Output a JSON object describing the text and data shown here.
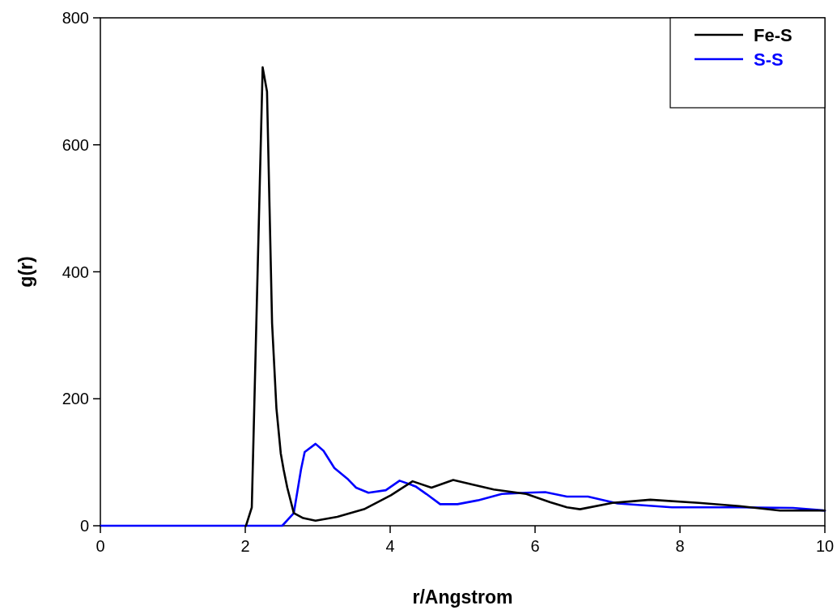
{
  "chart_data": {
    "type": "line",
    "xlabel": "r/Angstrom",
    "ylabel": "g(r)",
    "xlim": [
      0,
      10
    ],
    "ylim": [
      0,
      800
    ],
    "xticks": [
      0,
      2,
      4,
      6,
      8,
      10
    ],
    "yticks": [
      0,
      200,
      400,
      600,
      800
    ],
    "legend": "top right",
    "grid": false,
    "marker": "none",
    "line_style": "solid",
    "series": [
      {
        "name": "Fe-S",
        "color": "#000000",
        "x": [
          2.01,
          2.09,
          2.24,
          2.3,
          2.37,
          2.43,
          2.49,
          2.53,
          2.58,
          2.67,
          2.8,
          2.97,
          3.27,
          3.64,
          4.01,
          4.31,
          4.57,
          4.87,
          5.13,
          5.43,
          5.88,
          6.21,
          6.44,
          6.62,
          7.07,
          7.59,
          8.26,
          8.82,
          9.38,
          10
        ],
        "values": [
          0,
          29,
          722,
          684,
          319,
          185,
          114,
          88,
          60,
          20,
          12,
          8,
          14,
          26,
          48,
          70,
          60,
          72,
          65,
          57,
          50,
          37,
          29,
          26,
          36,
          41,
          36,
          31,
          24,
          24
        ]
      },
      {
        "name": "S-S",
        "color": "#0000ff",
        "x": [
          0,
          2.51,
          2.67,
          2.77,
          2.82,
          2.97,
          3.08,
          3.23,
          3.42,
          3.53,
          3.7,
          3.94,
          4.13,
          4.35,
          4.5,
          4.69,
          4.93,
          5.21,
          5.54,
          5.88,
          6.14,
          6.44,
          6.73,
          7.14,
          7.89,
          8.82,
          9.56,
          10
        ],
        "values": [
          0,
          0,
          20,
          89,
          116,
          129,
          118,
          91,
          73,
          60,
          52,
          56,
          71,
          62,
          50,
          34,
          34,
          40,
          50,
          52,
          53,
          46,
          46,
          35,
          29,
          29,
          28,
          24
        ]
      }
    ]
  }
}
